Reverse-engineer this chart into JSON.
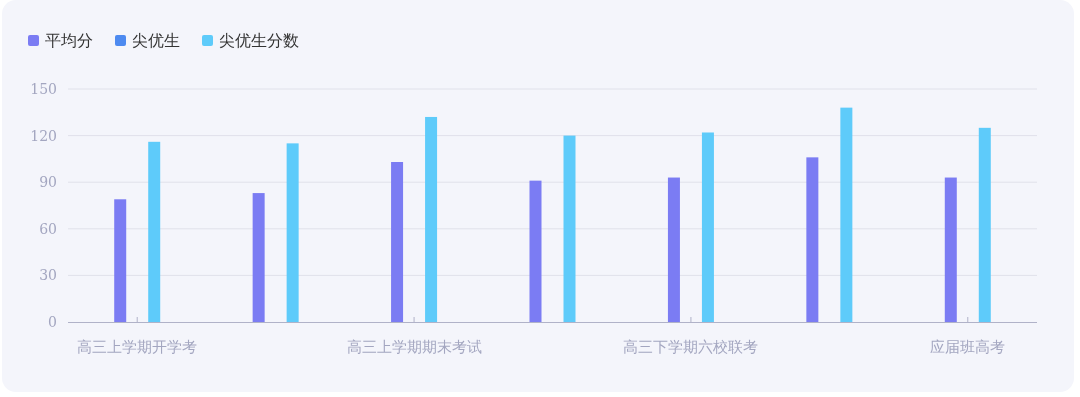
{
  "chart_data": {
    "type": "bar",
    "categories": [
      "高三上学期开学考",
      null,
      "高三上学期期末考试",
      null,
      "高三下学期六校联考",
      null,
      "应届班高考"
    ],
    "series": [
      {
        "name": "平均分",
        "color": "#7b7cf3",
        "values": [
          79,
          83,
          103,
          91,
          93,
          106,
          93
        ]
      },
      {
        "name": "尖优生",
        "color": "#4d8af0",
        "values": [
          null,
          null,
          null,
          null,
          null,
          null,
          null
        ]
      },
      {
        "name": "尖优生分数",
        "color": "#5ecbfa",
        "values": [
          116,
          115,
          132,
          120,
          122,
          138,
          125
        ]
      }
    ],
    "ylim": [
      0,
      150
    ],
    "yticks": [
      0,
      30,
      60,
      90,
      120,
      150
    ],
    "grid": "y",
    "legend": "top left"
  }
}
